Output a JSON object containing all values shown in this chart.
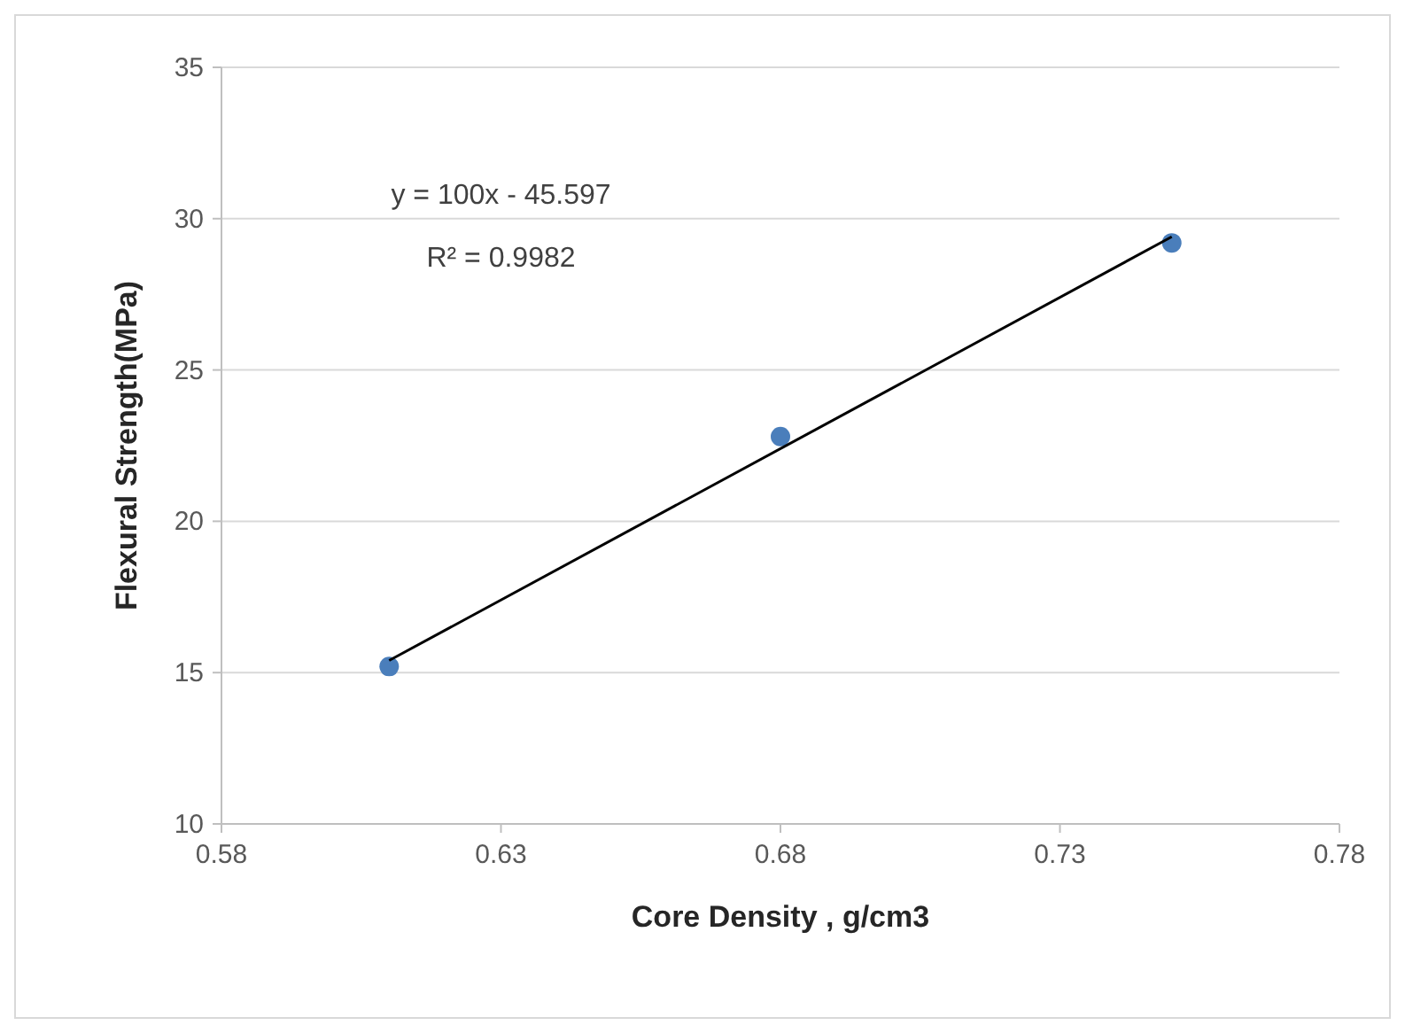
{
  "chart_data": {
    "type": "scatter",
    "xlabel": "Core Density , g/cm3",
    "ylabel": "Flexural Strength(MPa)",
    "xlim": [
      0.58,
      0.78
    ],
    "xticks": [
      0.58,
      0.63,
      0.68,
      0.73,
      0.78
    ],
    "ylim": [
      10,
      35
    ],
    "yticks": [
      10,
      15,
      20,
      25,
      30,
      35
    ],
    "grid": "y",
    "series": [
      {
        "color": "#4a7ebb",
        "marker": "circle",
        "x": [
          0.61,
          0.68,
          0.75
        ],
        "values": [
          15.2,
          22.8,
          29.2
        ]
      },
      {
        "type": "line",
        "color": "#000000",
        "marker": "none",
        "line_style": "solid",
        "x": [
          0.61,
          0.75
        ],
        "values": [
          15.4,
          29.4
        ]
      }
    ],
    "annotations": [
      "y = 100x - 45.597",
      "R² = 0.9982"
    ]
  }
}
